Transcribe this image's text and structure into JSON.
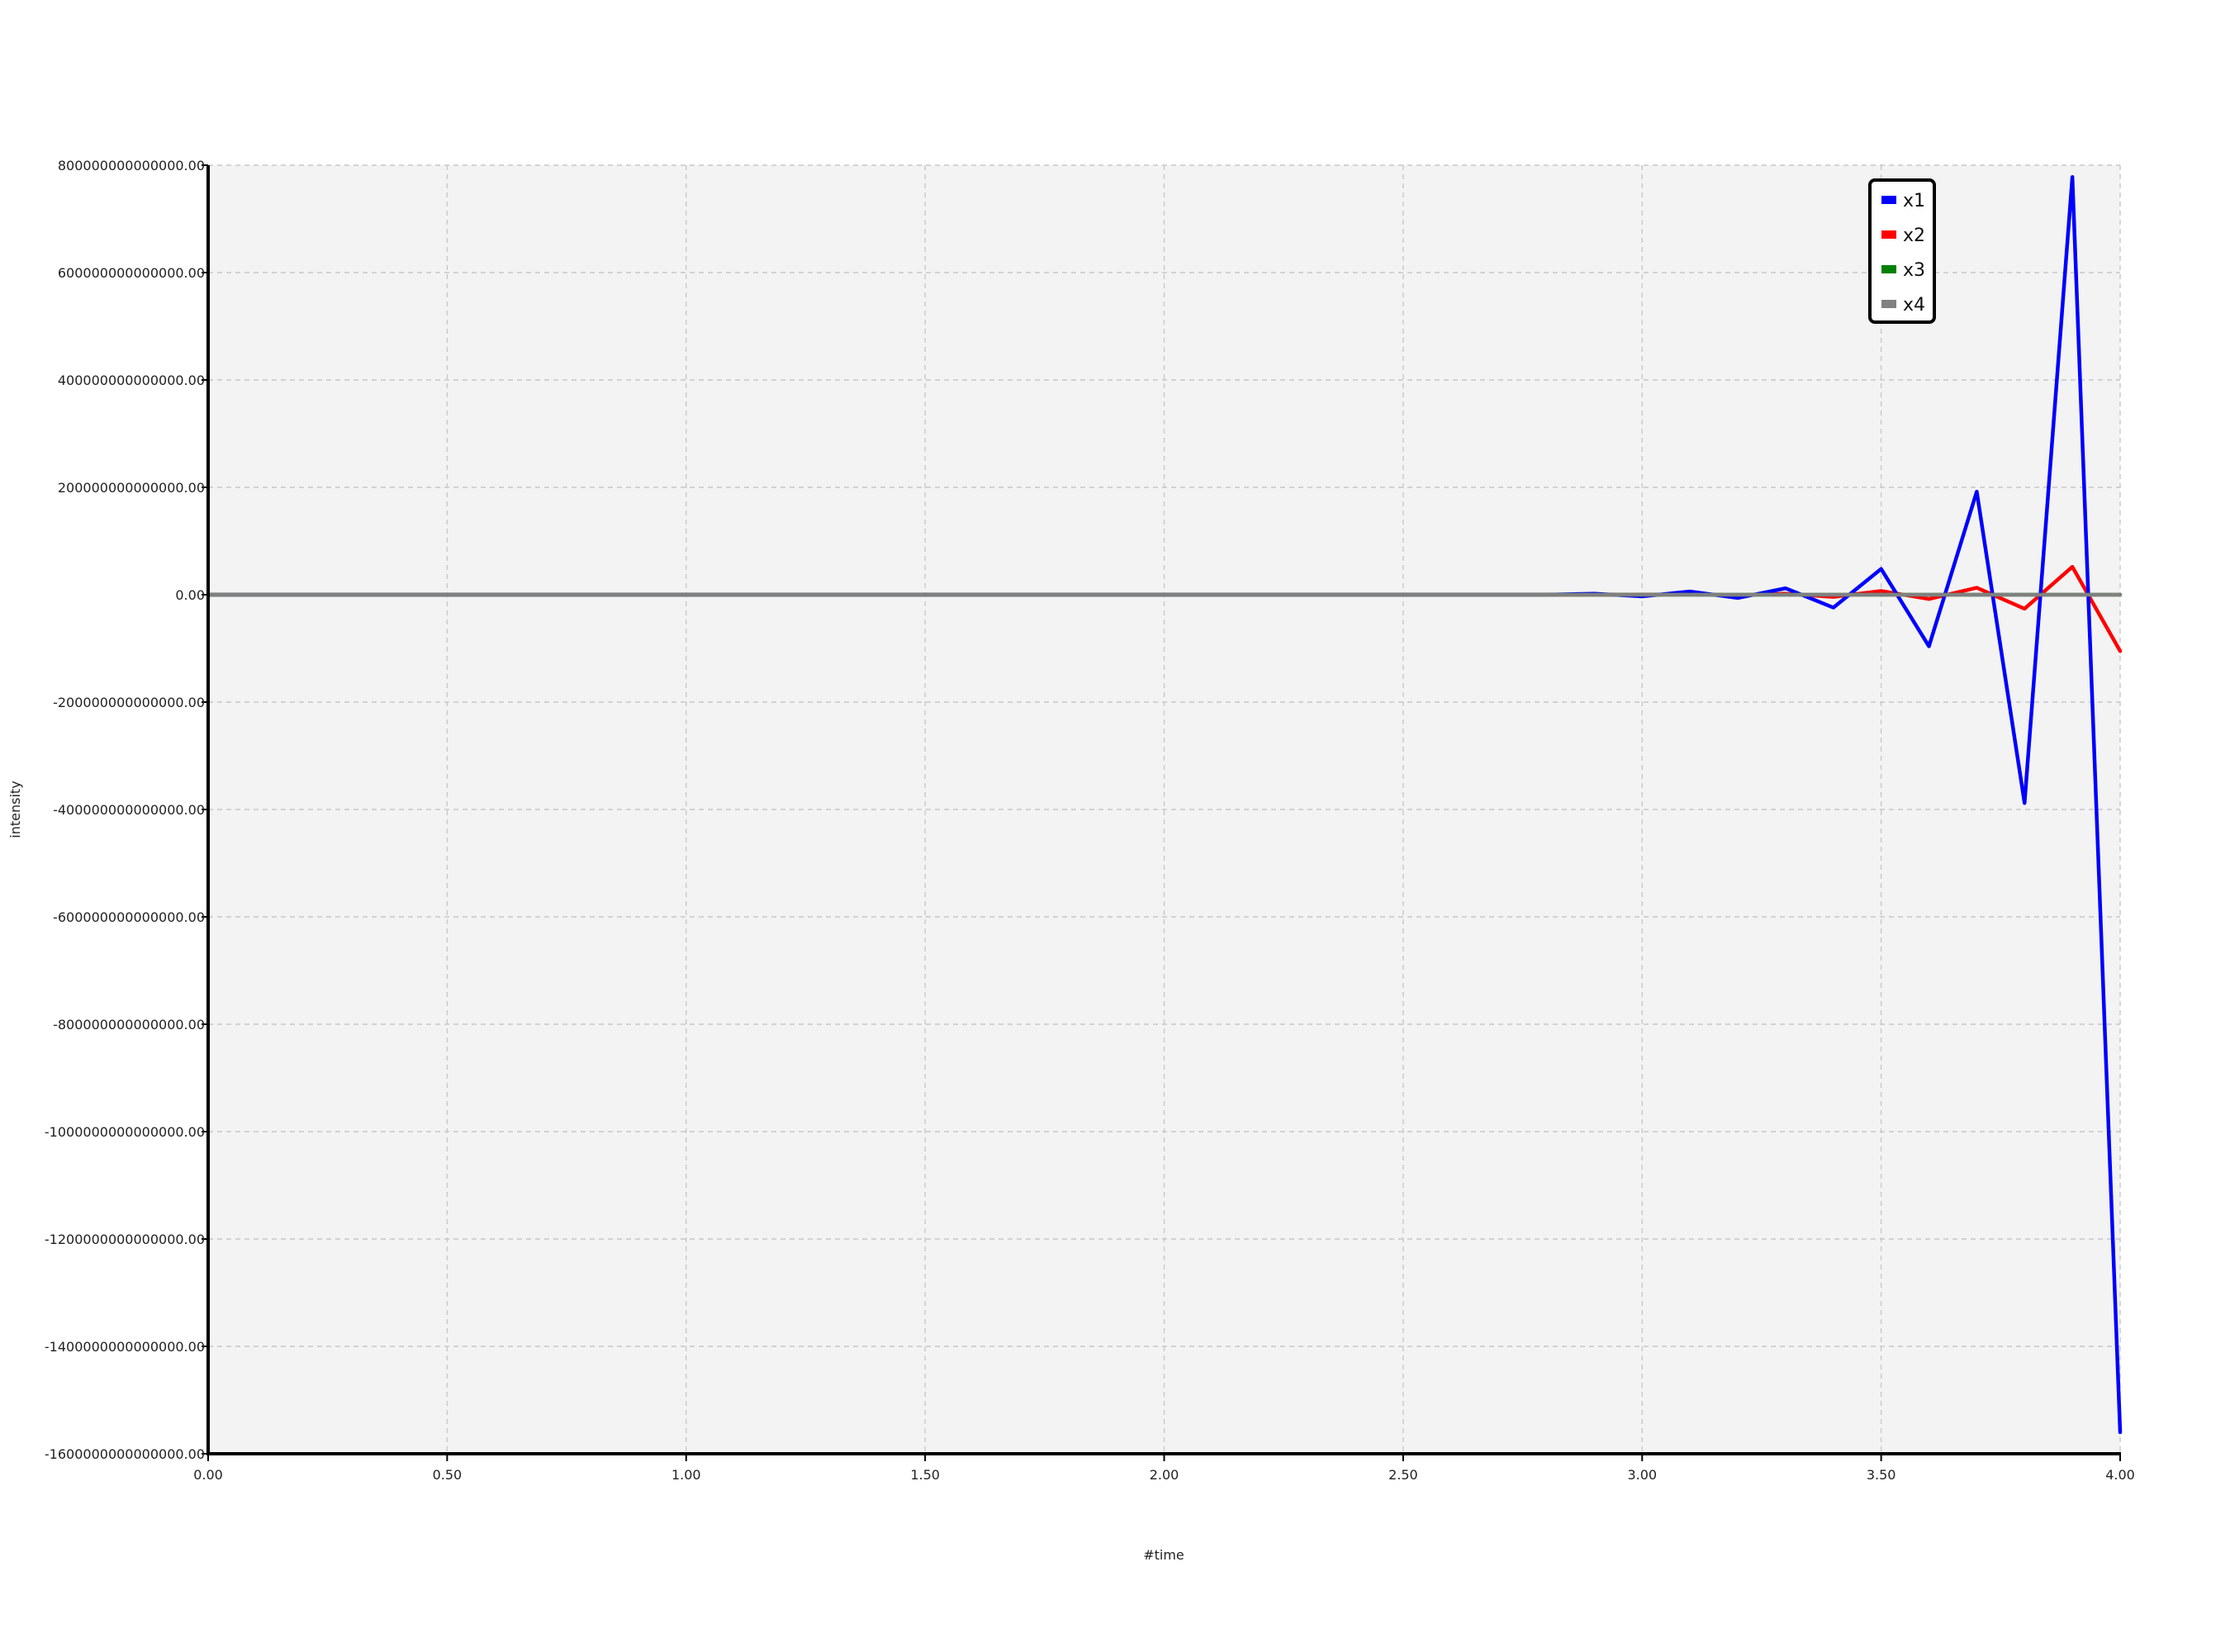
{
  "chart_data": {
    "type": "line",
    "title": "",
    "xlabel": "#time",
    "ylabel": "intensity",
    "xlim": [
      0,
      4
    ],
    "ylim": [
      -1600000000000000,
      800000000000000
    ],
    "x_ticks": [
      0,
      0.5,
      1,
      1.5,
      2,
      2.5,
      3,
      3.5,
      4
    ],
    "x_tick_labels": [
      "0.00",
      "0.50",
      "1.00",
      "1.50",
      "2.00",
      "2.50",
      "3.00",
      "3.50",
      "4.00"
    ],
    "y_ticks": [
      800000000000000,
      600000000000000,
      400000000000000,
      200000000000000,
      0,
      -200000000000000,
      -400000000000000,
      -600000000000000,
      -800000000000000,
      -1000000000000000,
      -1200000000000000,
      -1400000000000000,
      -1600000000000000
    ],
    "y_tick_labels": [
      "800000000000000.00",
      "600000000000000.00",
      "400000000000000.00",
      "200000000000000.00",
      "0.00",
      "-200000000000000.00",
      "-400000000000000.00",
      "-600000000000000.00",
      "-800000000000000.00",
      "-1000000000000000.00",
      "-1200000000000000.00",
      "-1400000000000000.00",
      "-1600000000000000.00"
    ],
    "grid": true,
    "legend_position": "top-right",
    "x": [
      0,
      0.1,
      0.2,
      0.3,
      0.4,
      0.5,
      0.6,
      0.7,
      0.8,
      0.9,
      1.0,
      1.1,
      1.2,
      1.3,
      1.4,
      1.5,
      1.6,
      1.7,
      1.8,
      1.9,
      2.0,
      2.1,
      2.2,
      2.3,
      2.4,
      2.5,
      2.6,
      2.7,
      2.8,
      2.9,
      3.0,
      3.1,
      3.2,
      3.3,
      3.4,
      3.5,
      3.6,
      3.7,
      3.8,
      3.9,
      4.0
    ],
    "series": [
      {
        "name": "x1",
        "color": "#0000ff",
        "values": [
          0,
          0,
          0,
          0,
          0,
          0,
          0,
          0,
          0,
          0,
          0,
          0,
          0,
          0,
          0,
          0,
          0,
          0,
          0,
          0,
          0,
          0,
          0,
          0,
          0,
          0,
          0,
          0,
          0,
          2000000000000,
          -3000000000000,
          6000000000000,
          -6000000000000,
          12000000000000,
          -24000000000000,
          48000000000000,
          -96000000000000,
          192000000000000,
          -388000000000000,
          778000000000000,
          -1560000000000000
        ]
      },
      {
        "name": "x2",
        "color": "#ff0000",
        "values": [
          0,
          0,
          0,
          0,
          0,
          0,
          0,
          0,
          0,
          0,
          0,
          0,
          0,
          0,
          0,
          0,
          0,
          0,
          0,
          0,
          0,
          0,
          0,
          0,
          0,
          0,
          0,
          0,
          0,
          0,
          0,
          1000000000000,
          -1000000000000,
          2000000000000,
          -4000000000000,
          7000000000000,
          -8000000000000,
          13000000000000,
          -26000000000000,
          52000000000000,
          -105000000000000
        ]
      },
      {
        "name": "x3",
        "color": "#008000",
        "values": [
          0,
          0,
          0,
          0,
          0,
          0,
          0,
          0,
          0,
          0,
          0,
          0,
          0,
          0,
          0,
          0,
          0,
          0,
          0,
          0,
          0,
          0,
          0,
          0,
          0,
          0,
          0,
          0,
          0,
          0,
          0,
          0,
          0,
          0,
          0,
          0,
          0,
          0,
          0,
          0,
          0
        ]
      },
      {
        "name": "x4",
        "color": "#808080",
        "values": [
          0,
          0,
          0,
          0,
          0,
          0,
          0,
          0,
          0,
          0,
          0,
          0,
          0,
          0,
          0,
          0,
          0,
          0,
          0,
          0,
          0,
          0,
          0,
          0,
          0,
          0,
          0,
          0,
          0,
          0,
          0,
          0,
          0,
          0,
          0,
          0,
          0,
          0,
          0,
          0,
          0
        ]
      }
    ]
  }
}
